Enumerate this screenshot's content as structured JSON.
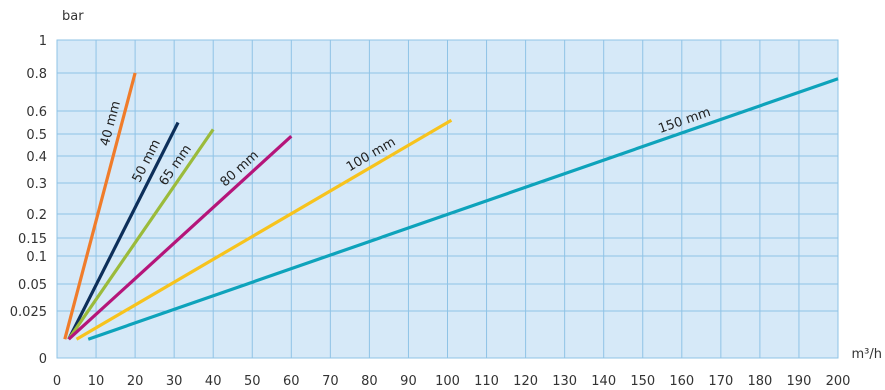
{
  "chart_data": {
    "type": "line",
    "xlabel": "m³/h",
    "ylabel": "bar",
    "xlim": [
      0,
      200
    ],
    "x_ticks": [
      0,
      10,
      20,
      30,
      40,
      50,
      60,
      70,
      80,
      90,
      100,
      110,
      120,
      130,
      140,
      150,
      160,
      170,
      180,
      190,
      200
    ],
    "y_scale": "non-uniform",
    "y_ticks": [
      {
        "value": 0,
        "label": "0"
      },
      {
        "value": 0.025,
        "label": "0.025"
      },
      {
        "value": 0.05,
        "label": "0.05"
      },
      {
        "value": 0.1,
        "label": "0.1"
      },
      {
        "value": 0.15,
        "label": "0.15"
      },
      {
        "value": 0.2,
        "label": "0.2"
      },
      {
        "value": 0.3,
        "label": "0.3"
      },
      {
        "value": 0.4,
        "label": "0.4"
      },
      {
        "value": 0.5,
        "label": "0.5"
      },
      {
        "value": 0.6,
        "label": "0.6"
      },
      {
        "value": 0.8,
        "label": "0.8"
      },
      {
        "value": 1,
        "label": "1"
      }
    ],
    "grid": true,
    "background_color": "#d6e9f8",
    "grid_color": "#8fc3e6",
    "series": [
      {
        "name": "40 mm",
        "color": "#f07c2a",
        "x": [
          2,
          20
        ],
        "y": [
          0.01,
          0.8
        ]
      },
      {
        "name": "50 mm",
        "color": "#0d2f5a",
        "x": [
          3,
          31
        ],
        "y": [
          0.01,
          0.55
        ]
      },
      {
        "name": "65 mm",
        "color": "#9bbb3b",
        "x": [
          3,
          40
        ],
        "y": [
          0.01,
          0.52
        ]
      },
      {
        "name": "80 mm",
        "color": "#b5157a",
        "x": [
          3,
          60
        ],
        "y": [
          0.01,
          0.49
        ]
      },
      {
        "name": "100 mm",
        "color": "#f7c31d",
        "x": [
          5,
          101
        ],
        "y": [
          0.01,
          0.56
        ]
      },
      {
        "name": "150 mm",
        "color": "#0ea3bb",
        "x": [
          8,
          200
        ],
        "y": [
          0.01,
          0.77
        ]
      }
    ]
  }
}
